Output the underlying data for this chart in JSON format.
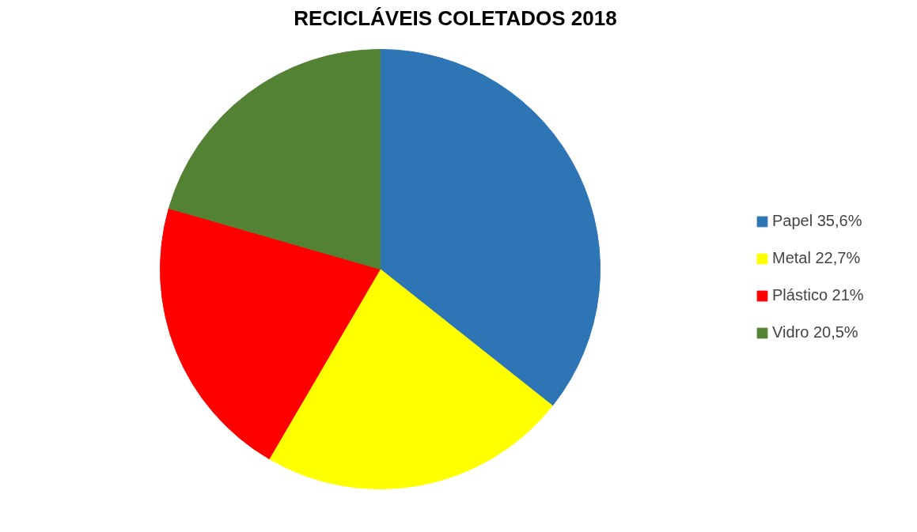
{
  "chart_data": {
    "type": "pie",
    "title": "RECICLÁVEIS COLETADOS 2018",
    "categories": [
      "Papel 35,6%",
      "Metal 22,7%",
      "Plástico 21%",
      "Vidro 20,5%"
    ],
    "values": [
      35.6,
      22.7,
      21,
      20.5
    ],
    "colors": [
      "#2e75b6",
      "#ffff00",
      "#ff0000",
      "#548235"
    ],
    "legend": "right"
  }
}
